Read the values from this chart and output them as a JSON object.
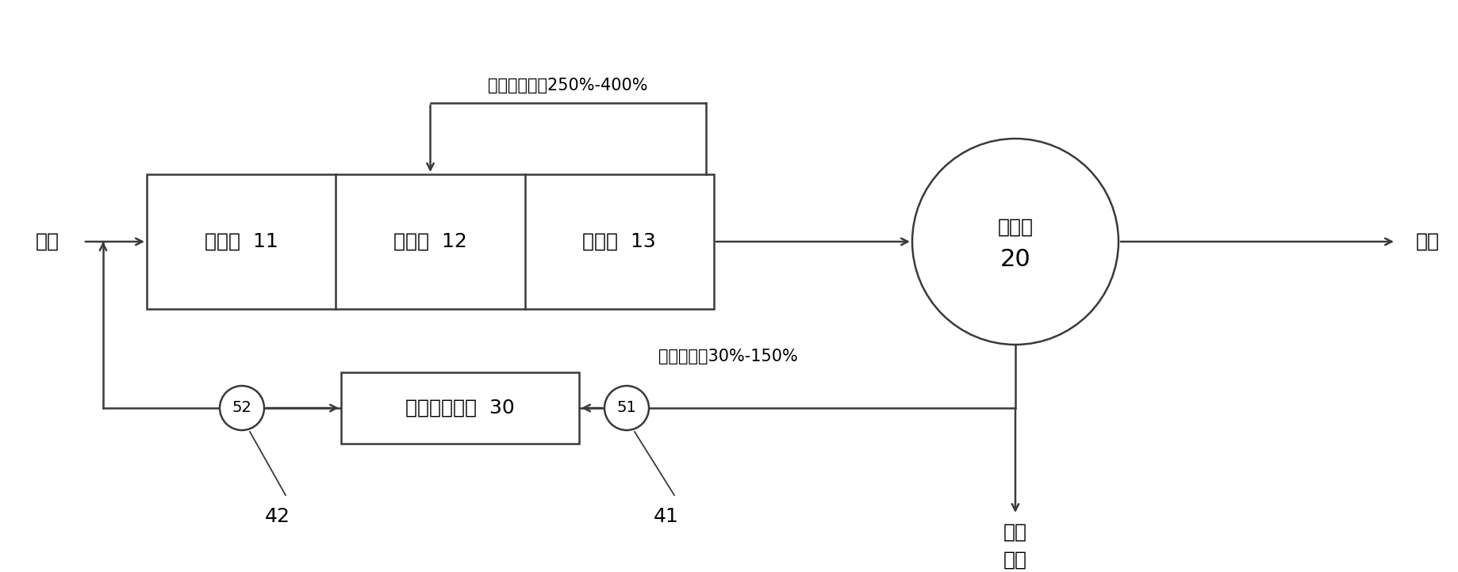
{
  "bg_color": "#ffffff",
  "line_color": "#3a3a3a",
  "figsize": [
    18.38,
    7.22
  ],
  "dpi": 100,
  "anaerobic_label": "厌氧池  11",
  "anoxic_label": "缺氧池  12",
  "aerobic_label": "好氧池  13",
  "settler_label": "二沉池",
  "settler_num": "20",
  "endogenous_rect_label": "内源反硝化池  30",
  "mixed_liquor_label": "混合液回流比250%-400%",
  "sludge_recycle_label": "污泥回流比30%-150%",
  "inflow_label": "进水",
  "outflow_label": "出水",
  "surplus_sludge_line1": "剩余",
  "surplus_sludge_line2": "污泥",
  "node_52": "52",
  "node_51": "51",
  "node_42": "42",
  "node_41": "41",
  "font_size_main": 18,
  "font_size_label": 15,
  "font_size_node": 14,
  "font_size_inout": 18
}
